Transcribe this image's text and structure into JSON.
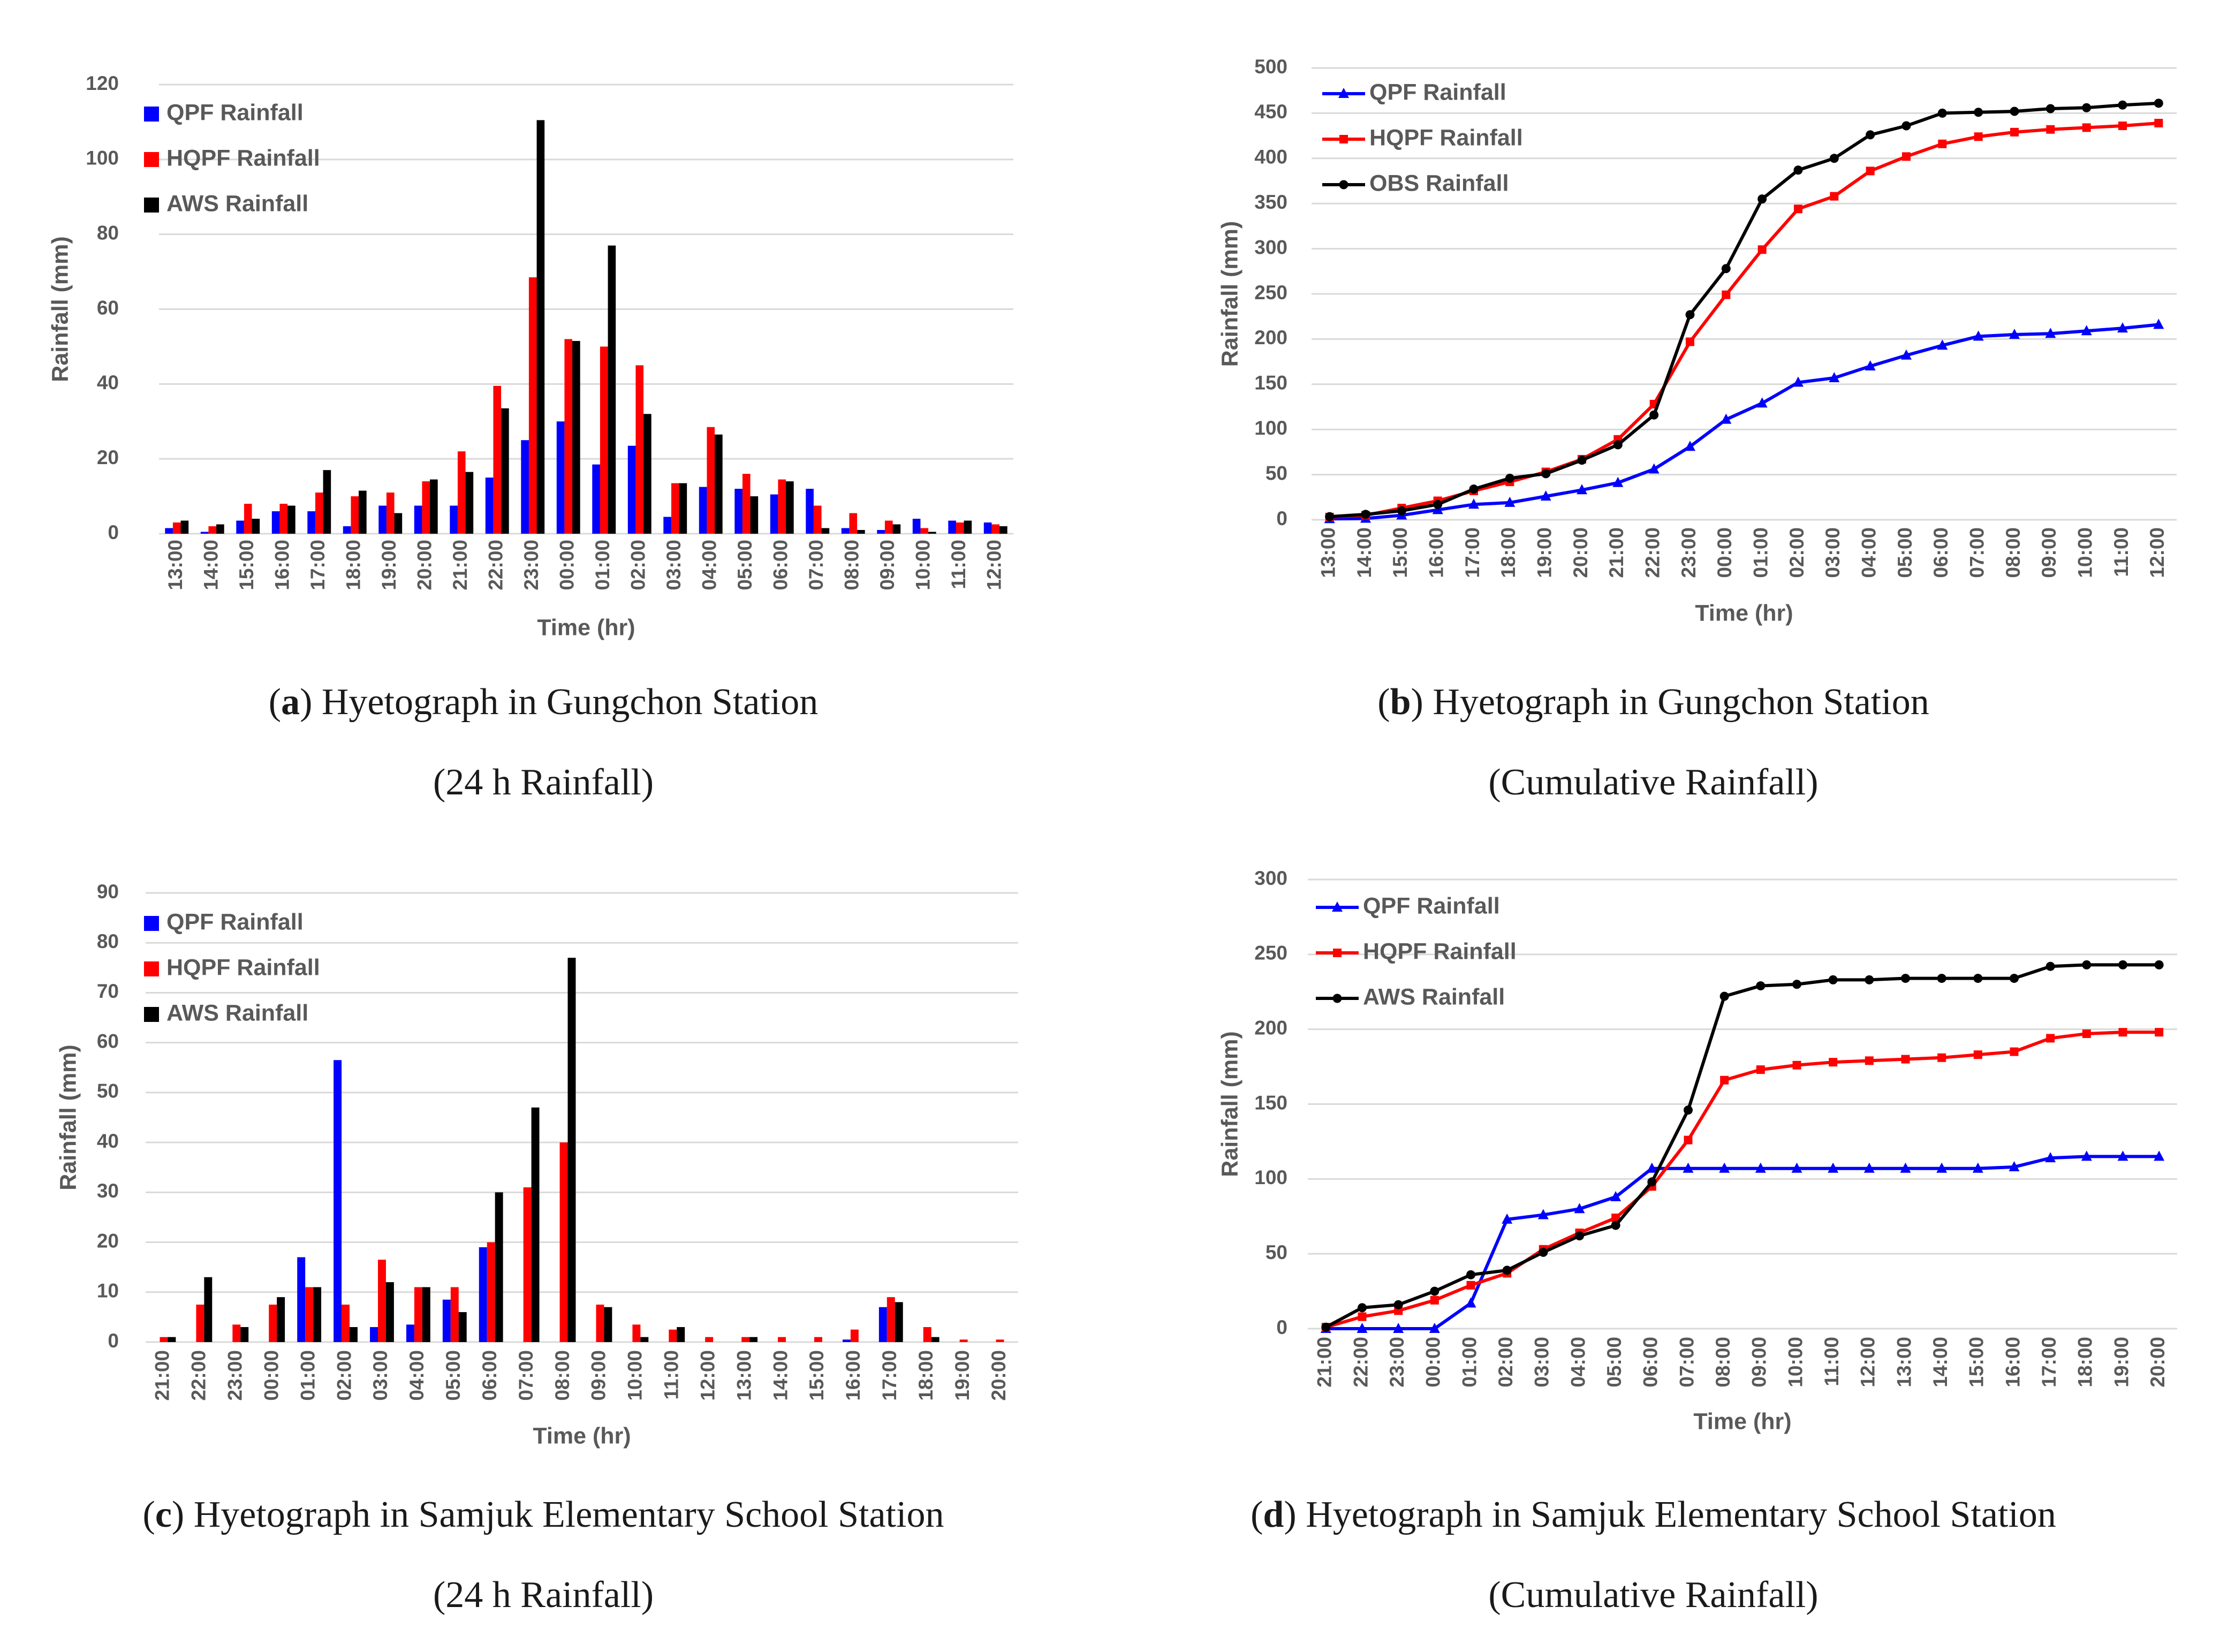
{
  "colors": {
    "qpf": "#0000ff",
    "hqpf": "#ff0000",
    "aws": "#000000",
    "grid": "#d9d9d9",
    "text": "#595959"
  },
  "captions": [
    {
      "letter": "a",
      "line1": ") Hyetograph in Gungchon Station",
      "line2": "(24 h Rainfall)"
    },
    {
      "letter": "b",
      "line1": ") Hyetograph in Gungchon Station",
      "line2": "(Cumulative Rainfall)"
    },
    {
      "letter": "c",
      "line1": ") Hyetograph in Samjuk Elementary School Station",
      "line2": "(24 h Rainfall)"
    },
    {
      "letter": "d",
      "line1": ") Hyetograph in Samjuk Elementary School Station",
      "line2": "(Cumulative Rainfall)"
    }
  ],
  "chart_data": [
    {
      "id": "a",
      "type": "bar",
      "title": "",
      "xlabel": "Time (hr)",
      "ylabel": "Rainfall (mm)",
      "ylim": [
        0,
        120
      ],
      "yticks": [
        0,
        20,
        40,
        60,
        80,
        100,
        120
      ],
      "legend_position": "top-left",
      "categories": [
        "13:00",
        "14:00",
        "15:00",
        "16:00",
        "17:00",
        "18:00",
        "19:00",
        "20:00",
        "21:00",
        "22:00",
        "23:00",
        "00:00",
        "01:00",
        "02:00",
        "03:00",
        "04:00",
        "05:00",
        "06:00",
        "07:00",
        "08:00",
        "09:00",
        "10:00",
        "11:00",
        "12:00"
      ],
      "series": [
        {
          "name": "QPF Rainfall",
          "color": "#0000ff",
          "values": [
            1.5,
            0.5,
            3.5,
            6,
            6,
            2,
            7.5,
            7.5,
            7.5,
            15,
            25,
            30,
            18.5,
            23.5,
            4.5,
            12.5,
            12,
            10.5,
            12,
            1.5,
            1,
            4,
            3.5,
            3
          ]
        },
        {
          "name": "HQPF Rainfall",
          "color": "#ff0000",
          "values": [
            3,
            2,
            8,
            8,
            11,
            10,
            11,
            14,
            22,
            39.5,
            68.5,
            52,
            50,
            45,
            13.5,
            28.5,
            16,
            14.5,
            7.5,
            5.5,
            3.5,
            1.5,
            3,
            2.5
          ]
        },
        {
          "name": "AWS Rainfall",
          "color": "#000000",
          "values": [
            3.5,
            2.5,
            4,
            7.5,
            17,
            11.5,
            5.5,
            14.5,
            16.5,
            33.5,
            110.5,
            51.5,
            77,
            32,
            13.5,
            26.5,
            10,
            14,
            1.5,
            1,
            2.5,
            0.5,
            3.5,
            2
          ]
        }
      ]
    },
    {
      "id": "b",
      "type": "line",
      "title": "",
      "xlabel": "Time (hr)",
      "ylabel": "Rainfall (mm)",
      "ylim": [
        0,
        500
      ],
      "yticks": [
        0,
        50,
        100,
        150,
        200,
        250,
        300,
        350,
        400,
        450,
        500
      ],
      "legend_position": "top-left",
      "categories": [
        "13:00",
        "14:00",
        "15:00",
        "16:00",
        "17:00",
        "18:00",
        "19:00",
        "20:00",
        "21:00",
        "22:00",
        "23:00",
        "00:00",
        "01:00",
        "02:00",
        "03:00",
        "04:00",
        "05:00",
        "06:00",
        "07:00",
        "08:00",
        "09:00",
        "10:00",
        "11:00",
        "12:00"
      ],
      "series": [
        {
          "name": "QPF Rainfall",
          "color": "#0000ff",
          "marker": "triangle",
          "values": [
            1,
            1.5,
            5,
            11,
            17,
            19,
            26,
            33,
            41,
            56,
            81,
            111,
            129,
            152,
            157,
            170,
            182,
            193,
            203,
            205,
            206,
            209,
            212,
            216
          ]
        },
        {
          "name": "HQPF Rainfall",
          "color": "#ff0000",
          "marker": "square",
          "values": [
            3,
            5,
            13,
            21,
            32,
            42,
            53,
            67,
            89,
            128,
            197,
            249,
            299,
            344,
            358,
            386,
            402,
            416,
            424,
            429,
            432,
            434,
            436,
            439
          ]
        },
        {
          "name": "OBS Rainfall",
          "color": "#000000",
          "marker": "circle",
          "values": [
            3.5,
            6,
            10,
            17,
            34,
            46,
            51,
            66,
            83,
            116,
            227,
            278,
            355,
            387,
            400,
            426,
            436,
            450,
            451,
            452,
            455,
            456,
            459,
            461
          ]
        }
      ]
    },
    {
      "id": "c",
      "type": "bar",
      "title": "",
      "xlabel": "Time (hr)",
      "ylabel": "Rainfall (mm)",
      "ylim": [
        0,
        90
      ],
      "yticks": [
        0,
        10,
        20,
        30,
        40,
        50,
        60,
        70,
        80,
        90
      ],
      "legend_position": "top-left",
      "categories": [
        "21:00",
        "22:00",
        "23:00",
        "00:00",
        "01:00",
        "02:00",
        "03:00",
        "04:00",
        "05:00",
        "06:00",
        "07:00",
        "08:00",
        "09:00",
        "10:00",
        "11:00",
        "12:00",
        "13:00",
        "14:00",
        "15:00",
        "16:00",
        "17:00",
        "18:00",
        "19:00",
        "20:00"
      ],
      "series": [
        {
          "name": "QPF Rainfall",
          "color": "#0000ff",
          "values": [
            0,
            0,
            0,
            0,
            17,
            56.5,
            3,
            3.5,
            8.5,
            19,
            0,
            0,
            0,
            0,
            0,
            0,
            0,
            0,
            0,
            0.5,
            7,
            0,
            0,
            0
          ]
        },
        {
          "name": "HQPF Rainfall",
          "color": "#ff0000",
          "values": [
            1,
            7.5,
            3.5,
            7.5,
            11,
            7.5,
            16.5,
            11,
            11,
            20,
            31,
            40,
            7.5,
            3.5,
            2.5,
            1,
            1,
            1,
            1,
            2.5,
            9,
            3,
            0.5,
            0.5
          ]
        },
        {
          "name": "AWS Rainfall",
          "color": "#000000",
          "values": [
            1,
            13,
            3,
            9,
            11,
            3,
            12,
            11,
            6,
            30,
            47,
            77,
            7,
            1,
            3,
            0,
            1,
            0,
            0,
            0,
            8,
            1,
            0,
            0
          ]
        }
      ]
    },
    {
      "id": "d",
      "type": "line",
      "title": "",
      "xlabel": "Time (hr)",
      "ylabel": "Rainfall (mm)",
      "ylim": [
        0,
        300
      ],
      "yticks": [
        0,
        50,
        100,
        150,
        200,
        250,
        300
      ],
      "legend_position": "top-left",
      "categories": [
        "21:00",
        "22:00",
        "23:00",
        "00:00",
        "01:00",
        "02:00",
        "03:00",
        "04:00",
        "05:00",
        "06:00",
        "07:00",
        "08:00",
        "09:00",
        "10:00",
        "11:00",
        "12:00",
        "13:00",
        "14:00",
        "15:00",
        "16:00",
        "17:00",
        "18:00",
        "19:00",
        "20:00"
      ],
      "series": [
        {
          "name": "QPF Rainfall",
          "color": "#0000ff",
          "marker": "triangle",
          "values": [
            0,
            0,
            0,
            0,
            17,
            73,
            76,
            80,
            88,
            107,
            107,
            107,
            107,
            107,
            107,
            107,
            107,
            107,
            107,
            108,
            114,
            115,
            115,
            115
          ]
        },
        {
          "name": "HQPF Rainfall",
          "color": "#ff0000",
          "marker": "square",
          "values": [
            1,
            8,
            12,
            19,
            29,
            37,
            53,
            64,
            74,
            95,
            126,
            166,
            173,
            176,
            178,
            179,
            180,
            181,
            183,
            185,
            194,
            197,
            198,
            198
          ]
        },
        {
          "name": "AWS Rainfall",
          "color": "#000000",
          "marker": "circle",
          "values": [
            1,
            14,
            16,
            25,
            36,
            39,
            51,
            62,
            69,
            98,
            146,
            222,
            229,
            230,
            233,
            233,
            234,
            234,
            234,
            234,
            242,
            243,
            243,
            243
          ]
        }
      ]
    }
  ]
}
